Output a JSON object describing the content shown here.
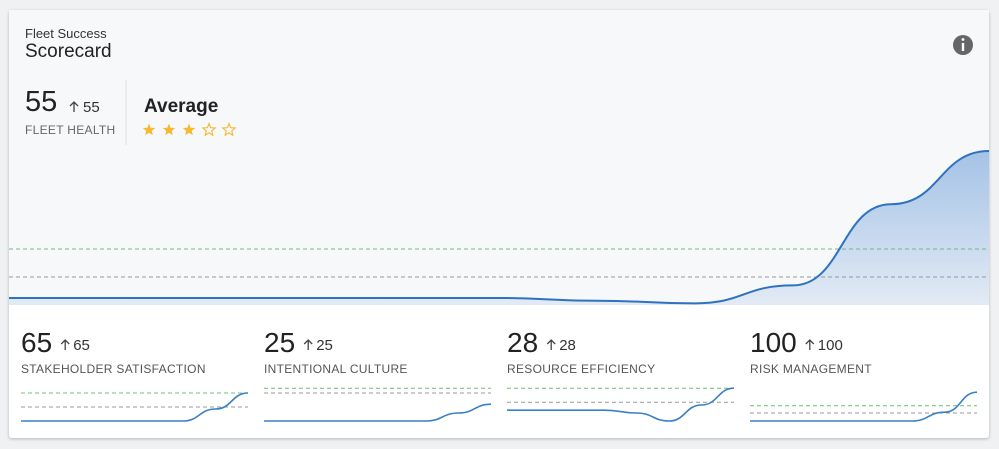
{
  "header": {
    "subtitle": "Fleet Success",
    "title": "Scorecard"
  },
  "summary": {
    "score": 55,
    "change": 55,
    "label": "FLEET HEALTH",
    "rating_label": "Average",
    "rating": 3,
    "rating_max": 5,
    "trend": {
      "values": [
        2.5,
        2.5,
        2.5,
        2.5,
        2.5,
        2.5,
        1.5,
        0.6,
        7,
        36,
        55
      ],
      "ylim": [
        0,
        60
      ],
      "color": "#2f72c0",
      "targets": [
        {
          "value": 20,
          "color": "#6cc070"
        },
        {
          "value": 10,
          "color": "#999999"
        }
      ]
    }
  },
  "metrics": [
    {
      "score": 65,
      "change": 65,
      "label": "STAKEHOLDER SATISFACTION",
      "trend": {
        "values": [
          10,
          10,
          10,
          10,
          10,
          10,
          40,
          80
        ],
        "ylim": [
          0,
          100
        ],
        "color": "#3a80c8",
        "targets": [
          {
            "value": 80,
            "color": "#6cc070"
          },
          {
            "value": 45,
            "color": "#999999"
          }
        ]
      }
    },
    {
      "score": 25,
      "change": 25,
      "label": "INTENTIONAL CULTURE",
      "trend": {
        "values": [
          10,
          10,
          10,
          10,
          10,
          10,
          30,
          52
        ],
        "ylim": [
          0,
          100
        ],
        "color": "#3a80c8",
        "targets": [
          {
            "value": 92,
            "color": "#6cc070"
          },
          {
            "value": 80,
            "color": "#999999"
          }
        ]
      }
    },
    {
      "score": 28,
      "change": 28,
      "label": "RESOURCE EFFICIENCY",
      "trend": {
        "values": [
          37,
          37,
          37,
          37,
          30,
          10,
          50,
          92
        ],
        "ylim": [
          0,
          100
        ],
        "color": "#3a80c8",
        "targets": [
          {
            "value": 92,
            "color": "#6cc070"
          },
          {
            "value": 57,
            "color": "#999999"
          }
        ]
      }
    },
    {
      "score": 100,
      "change": 100,
      "label": "RISK MANAGEMENT",
      "trend": {
        "values": [
          10,
          10,
          10,
          10,
          10,
          10,
          32,
          82
        ],
        "ylim": [
          0,
          100
        ],
        "color": "#3a80c8",
        "targets": [
          {
            "value": 48,
            "color": "#6cc070"
          },
          {
            "value": 30,
            "color": "#999999"
          }
        ]
      }
    }
  ]
}
